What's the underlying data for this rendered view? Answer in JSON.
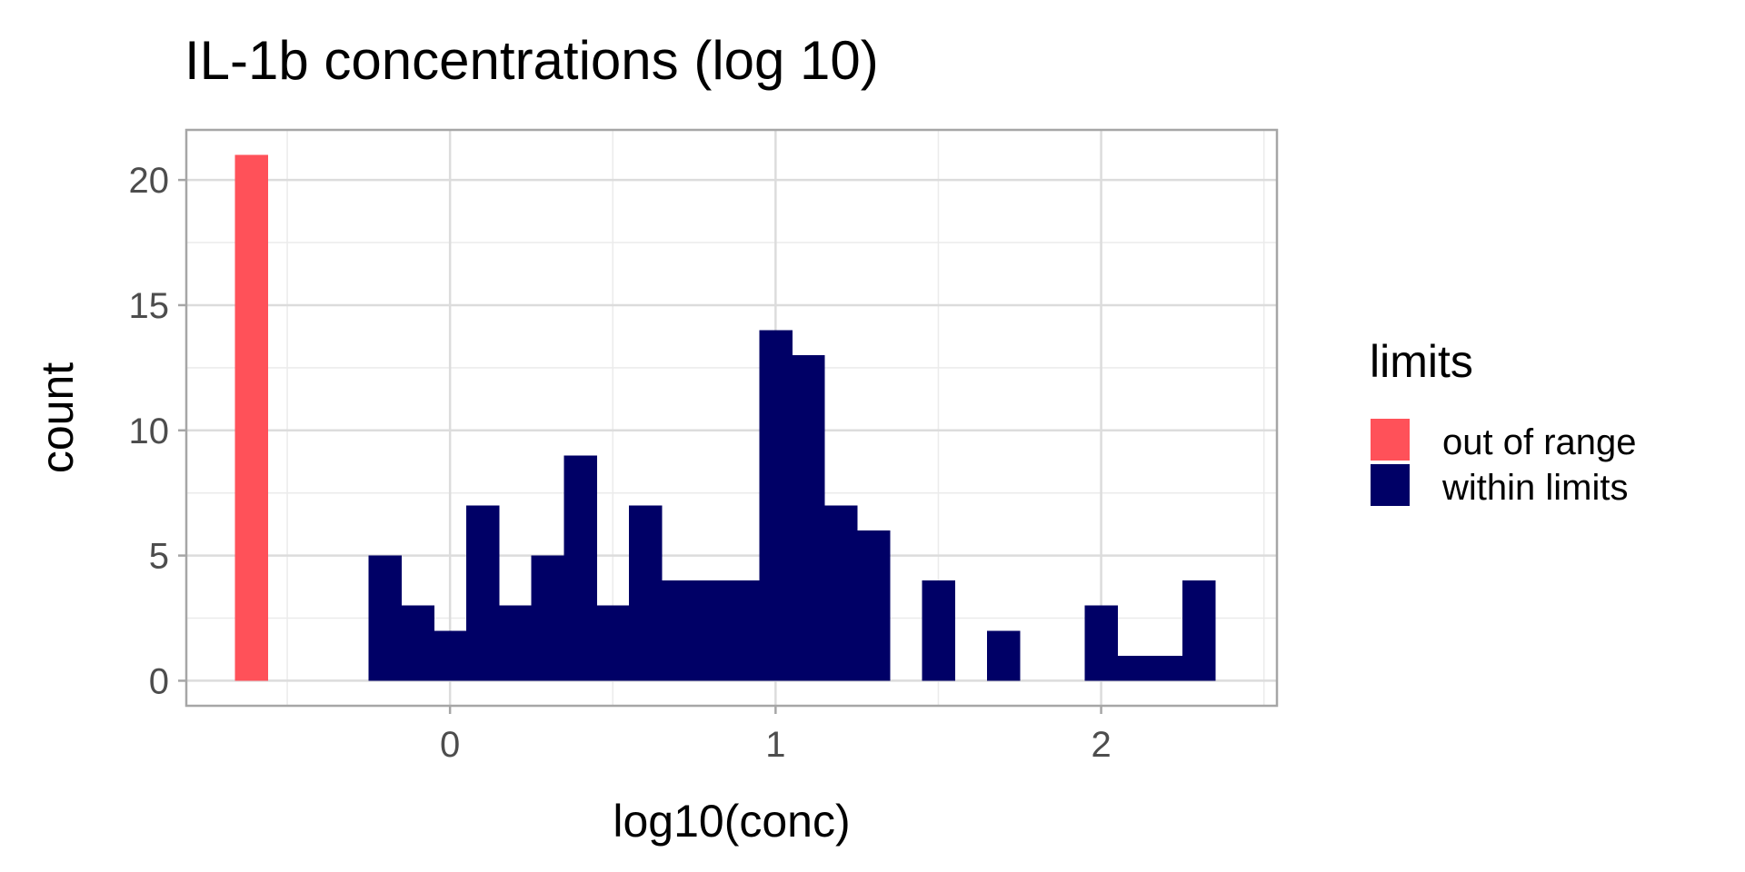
{
  "chart_data": {
    "type": "bar",
    "title": "IL-1b concentrations (log 10)",
    "xlabel": "log10(conc)",
    "ylabel": "count",
    "xlim": [
      -0.81,
      2.54
    ],
    "ylim": [
      -1.0,
      22.0
    ],
    "x_ticks": [
      0,
      1,
      2
    ],
    "x_tick_labels": [
      "0",
      "1",
      "2"
    ],
    "y_ticks": [
      0,
      5,
      10,
      15,
      20
    ],
    "y_tick_labels": [
      "0",
      "5",
      "10",
      "15",
      "20"
    ],
    "grid": true,
    "bin_width": 0.1,
    "legend": {
      "title": "limits",
      "position": "right",
      "entries": [
        {
          "label": "out of range",
          "color": "#FF5159"
        },
        {
          "label": "within limits",
          "color": "#000066"
        }
      ]
    },
    "series": [
      {
        "name": "out of range",
        "color": "#FF5159",
        "bins": [
          {
            "x0": -0.66,
            "x1": -0.56,
            "count": 21
          }
        ]
      },
      {
        "name": "within limits",
        "color": "#000066",
        "bins": [
          {
            "x0": -0.25,
            "x1": -0.15,
            "count": 5
          },
          {
            "x0": -0.15,
            "x1": -0.05,
            "count": 3
          },
          {
            "x0": -0.05,
            "x1": 0.05,
            "count": 2
          },
          {
            "x0": 0.05,
            "x1": 0.15,
            "count": 7
          },
          {
            "x0": 0.15,
            "x1": 0.25,
            "count": 3
          },
          {
            "x0": 0.25,
            "x1": 0.35,
            "count": 5
          },
          {
            "x0": 0.35,
            "x1": 0.45,
            "count": 9
          },
          {
            "x0": 0.45,
            "x1": 0.55,
            "count": 3
          },
          {
            "x0": 0.55,
            "x1": 0.65,
            "count": 7
          },
          {
            "x0": 0.65,
            "x1": 0.75,
            "count": 4
          },
          {
            "x0": 0.75,
            "x1": 0.85,
            "count": 4
          },
          {
            "x0": 0.85,
            "x1": 0.95,
            "count": 4
          },
          {
            "x0": 0.95,
            "x1": 1.05,
            "count": 14
          },
          {
            "x0": 1.05,
            "x1": 1.15,
            "count": 13
          },
          {
            "x0": 1.15,
            "x1": 1.25,
            "count": 7
          },
          {
            "x0": 1.25,
            "x1": 1.35,
            "count": 6
          },
          {
            "x0": 1.45,
            "x1": 1.55,
            "count": 4
          },
          {
            "x0": 1.65,
            "x1": 1.75,
            "count": 2
          },
          {
            "x0": 1.95,
            "x1": 2.05,
            "count": 3
          },
          {
            "x0": 2.05,
            "x1": 2.15,
            "count": 1
          },
          {
            "x0": 2.15,
            "x1": 2.25,
            "count": 1
          },
          {
            "x0": 2.25,
            "x1": 2.35,
            "count": 4
          }
        ]
      }
    ]
  }
}
